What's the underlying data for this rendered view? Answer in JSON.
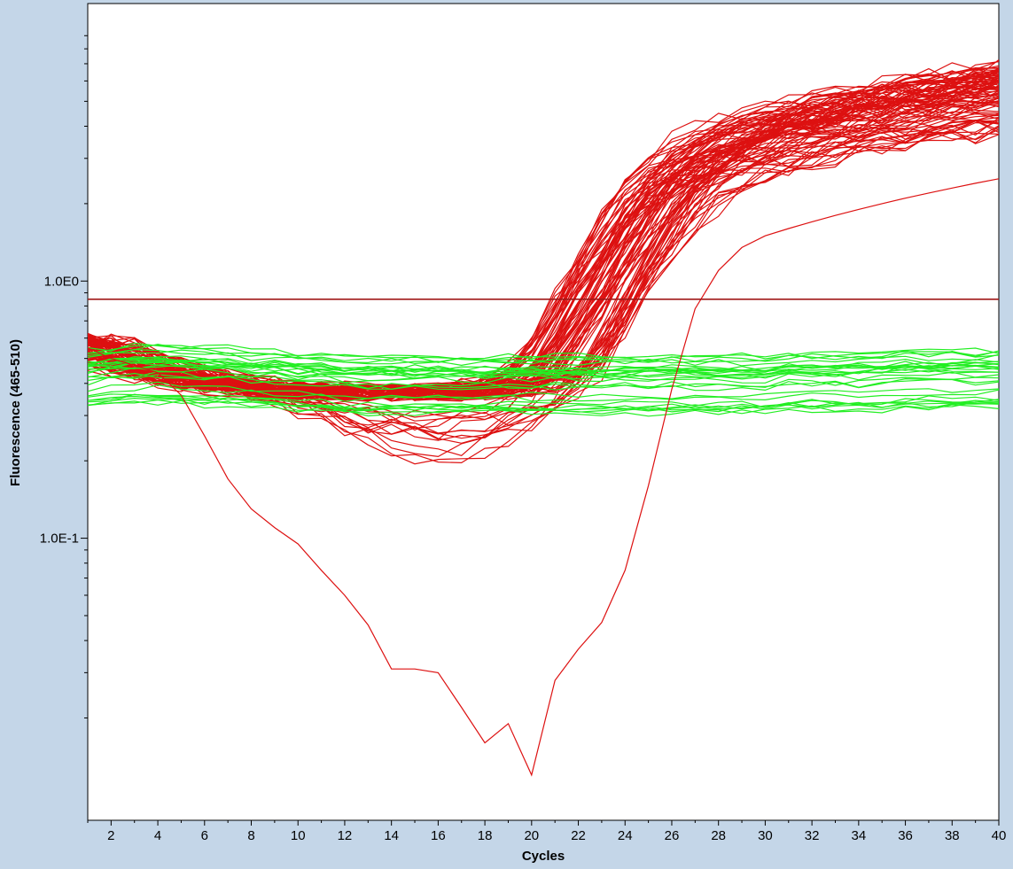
{
  "chart_data": {
    "type": "line",
    "xlabel": "Cycles",
    "ylabel": "Fluorescence (465-510)",
    "y_scale": "log",
    "xlim": [
      1,
      40
    ],
    "ylim": [
      0.008,
      12
    ],
    "x_ticks": [
      2,
      4,
      6,
      8,
      10,
      12,
      14,
      16,
      18,
      20,
      22,
      24,
      26,
      28,
      30,
      32,
      34,
      36,
      38,
      40
    ],
    "y_ticks": [
      {
        "value": 1.0,
        "label": "1.0E0"
      },
      {
        "value": 0.1,
        "label": "1.0E-1"
      }
    ],
    "threshold": 0.85,
    "grid": false,
    "legend": "none",
    "colors": {
      "amplified": "#dd1111",
      "negative": "#22ee22",
      "threshold_line": "#a01818",
      "plot_background": "#ffffff",
      "page_background": "#c4d6e8"
    },
    "series_groups": [
      {
        "group": "amplified",
        "color": "#dd1111",
        "count": 90,
        "cycles": [
          1,
          2,
          3,
          4,
          5,
          6,
          7,
          8,
          9,
          10,
          11,
          12,
          13,
          14,
          15,
          16,
          17,
          18,
          19,
          20,
          21,
          22,
          23,
          24,
          25,
          26,
          27,
          28,
          29,
          30,
          31,
          32,
          33,
          34,
          35,
          36,
          37,
          38,
          39,
          40
        ],
        "representative_values": [
          0.58,
          0.52,
          0.48,
          0.45,
          0.43,
          0.41,
          0.4,
          0.39,
          0.385,
          0.38,
          0.375,
          0.37,
          0.37,
          0.37,
          0.37,
          0.37,
          0.37,
          0.38,
          0.39,
          0.41,
          0.47,
          0.62,
          0.9,
          1.3,
          1.9,
          2.5,
          3.0,
          3.4,
          3.7,
          4.0,
          4.25,
          4.5,
          4.7,
          4.9,
          5.1,
          5.3,
          5.5,
          5.7,
          5.9,
          6.1
        ]
      },
      {
        "group": "negative",
        "color": "#22ee22",
        "count": 30,
        "cycles": [
          1,
          2,
          3,
          4,
          5,
          6,
          7,
          8,
          9,
          10,
          11,
          12,
          13,
          14,
          15,
          16,
          17,
          18,
          19,
          20,
          21,
          22,
          23,
          24,
          25,
          26,
          27,
          28,
          29,
          30,
          31,
          32,
          33,
          34,
          35,
          36,
          37,
          38,
          39,
          40
        ],
        "representative_values": [
          0.42,
          0.43,
          0.44,
          0.44,
          0.44,
          0.43,
          0.43,
          0.42,
          0.42,
          0.41,
          0.41,
          0.4,
          0.4,
          0.4,
          0.4,
          0.4,
          0.4,
          0.4,
          0.4,
          0.4,
          0.4,
          0.4,
          0.4,
          0.4,
          0.4,
          0.4,
          0.4,
          0.4,
          0.4,
          0.4,
          0.41,
          0.41,
          0.41,
          0.41,
          0.41,
          0.42,
          0.42,
          0.42,
          0.42,
          0.42
        ]
      },
      {
        "group": "late-dip",
        "color": "#dd1111",
        "count": 1,
        "cycles": [
          1,
          2,
          3,
          4,
          5,
          6,
          7,
          8,
          9,
          10,
          11,
          12,
          13,
          14,
          15,
          16,
          17,
          18,
          19,
          20,
          21,
          22,
          23,
          24,
          25,
          26,
          27,
          28,
          29,
          30,
          31,
          32,
          33,
          34,
          35,
          36,
          37,
          38,
          39,
          40
        ],
        "representative_values": [
          0.55,
          0.5,
          0.47,
          0.44,
          0.36,
          0.25,
          0.17,
          0.13,
          0.11,
          0.095,
          0.075,
          0.06,
          0.046,
          0.031,
          0.031,
          0.03,
          0.022,
          0.016,
          0.019,
          0.012,
          0.028,
          0.037,
          0.047,
          0.075,
          0.16,
          0.38,
          0.78,
          1.1,
          1.35,
          1.5,
          1.6,
          1.7,
          1.8,
          1.9,
          2.0,
          2.1,
          2.2,
          2.3,
          2.4,
          2.5
        ]
      }
    ]
  }
}
